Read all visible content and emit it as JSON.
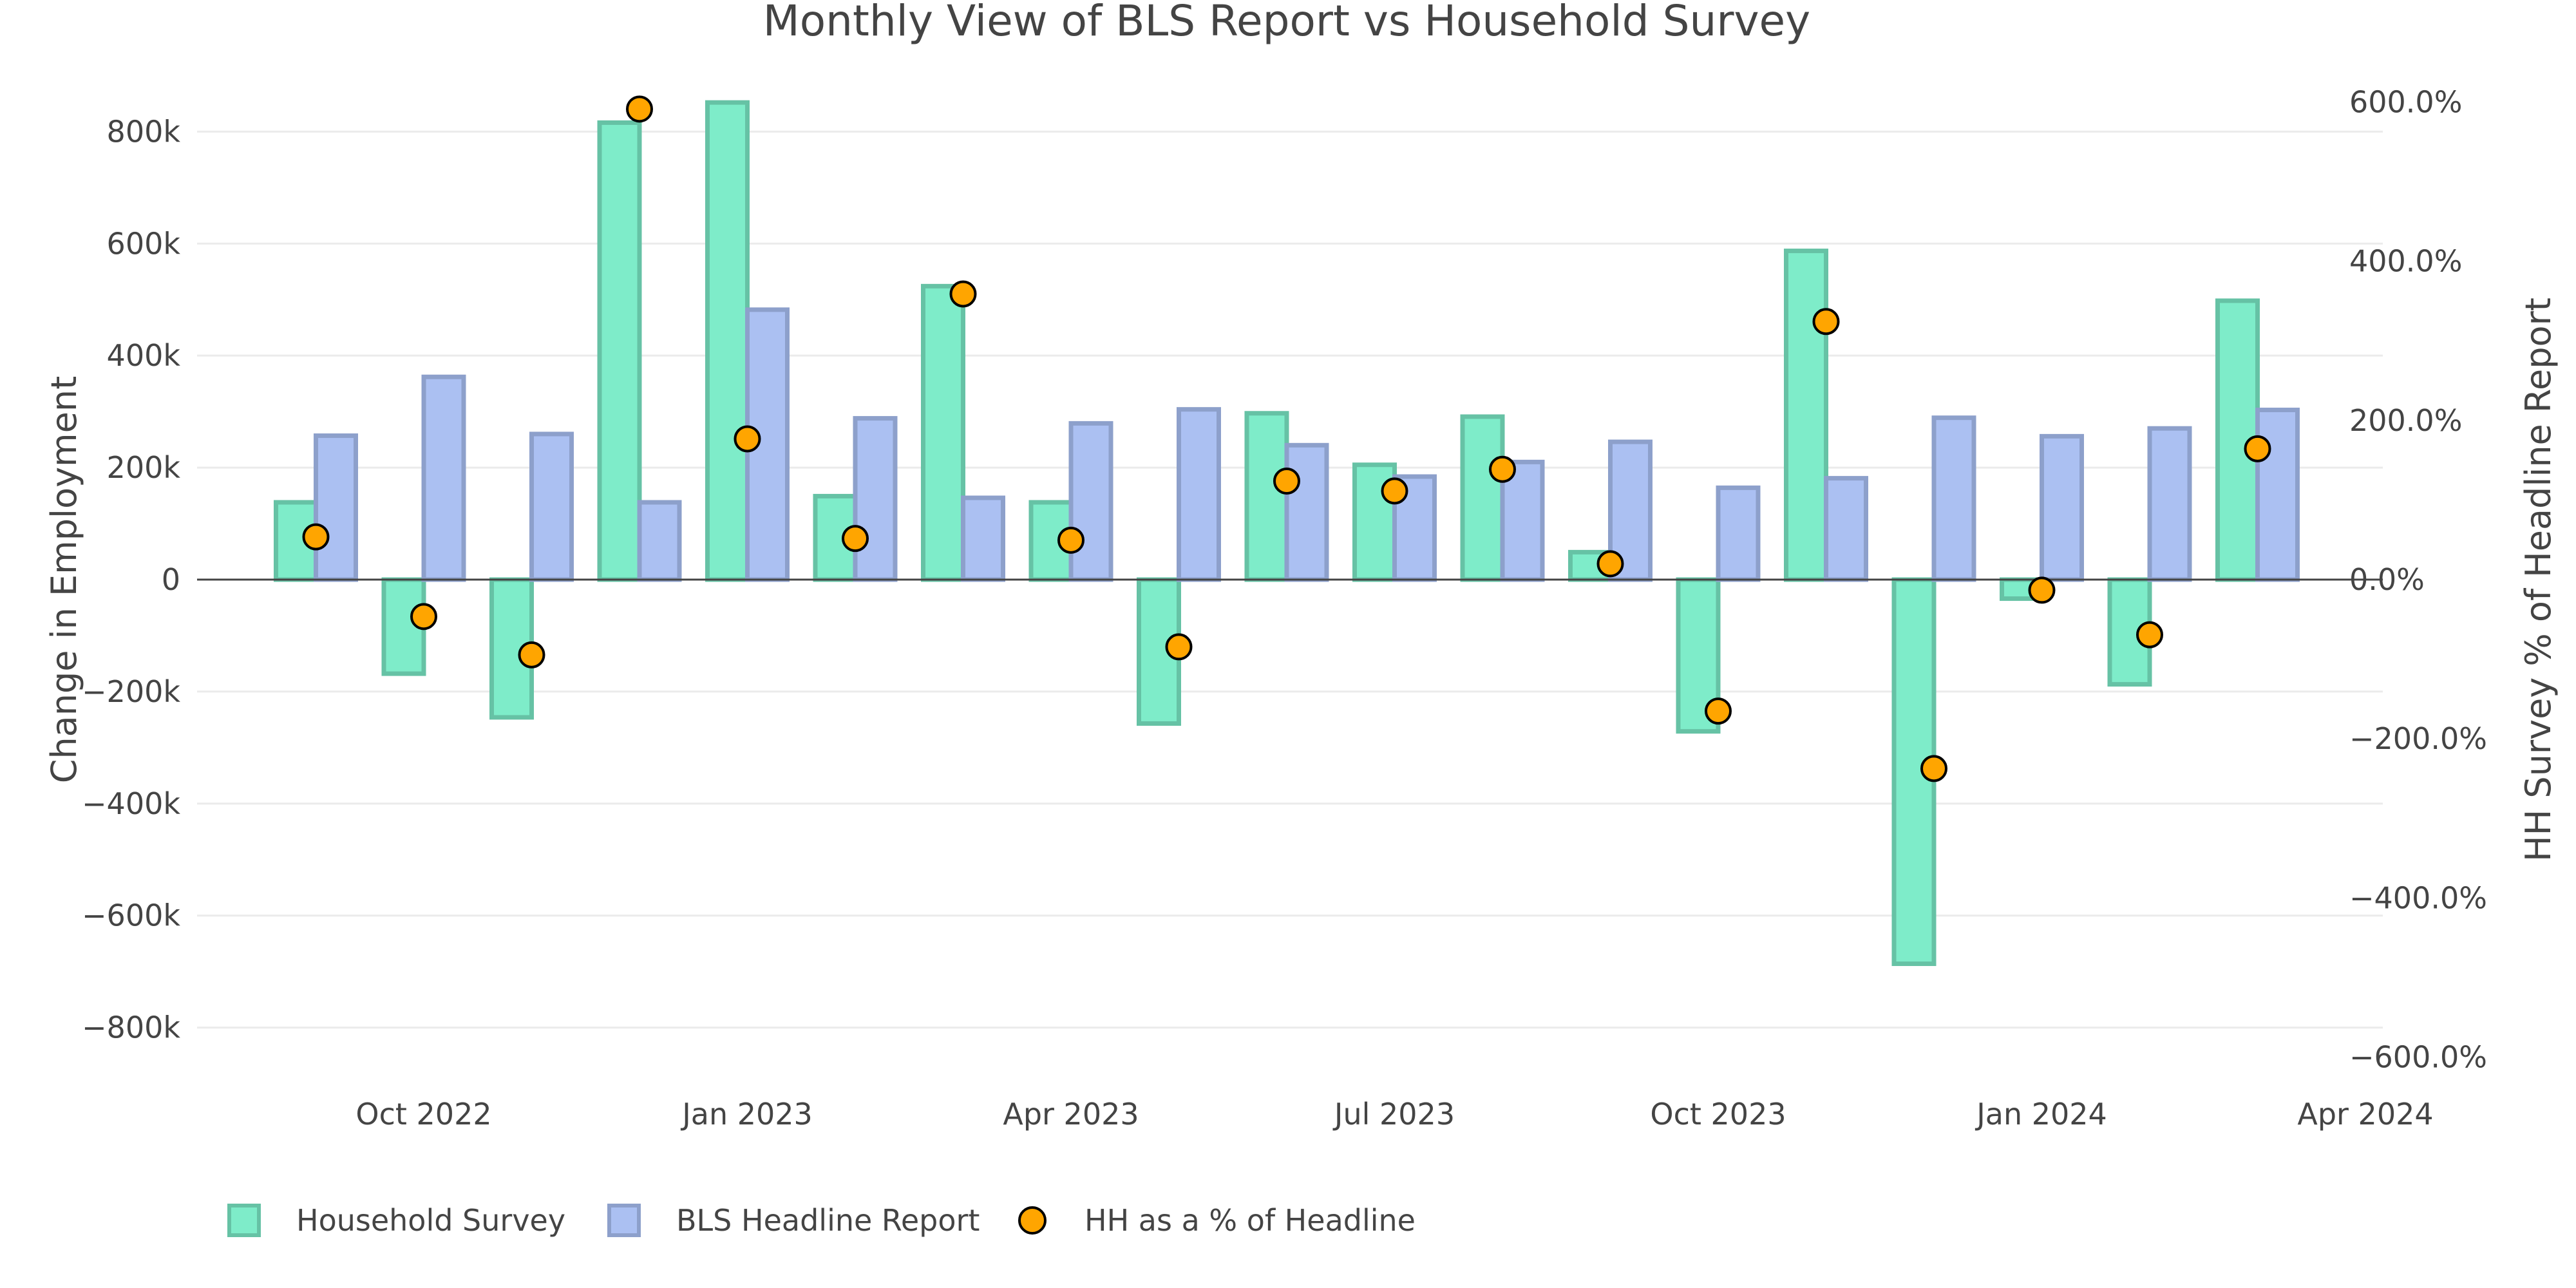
{
  "chart_data": {
    "type": "bar",
    "title": "Monthly View of BLS Report vs Household Survey",
    "xlabel": "",
    "ylabel": "Change in Employment",
    "y2label": "HH Survey % of Headline Report",
    "categories": [
      "Sep 2022",
      "Oct 2022",
      "Nov 2022",
      "Dec 2022",
      "Jan 2023",
      "Feb 2023",
      "Mar 2023",
      "Apr 2023",
      "May 2023",
      "Jun 2023",
      "Jul 2023",
      "Aug 2023",
      "Sep 2023",
      "Oct 2023",
      "Nov 2023",
      "Dec 2023",
      "Jan 2024",
      "Feb 2024",
      "Mar 2024"
    ],
    "x_ticks": [
      "Oct 2022",
      "Jan 2023",
      "Apr 2023",
      "Jul 2023",
      "Oct 2023",
      "Jan 2024",
      "Apr 2024"
    ],
    "x_tick_months_index": [
      1,
      4,
      7,
      10,
      13,
      16,
      19
    ],
    "ylim": [
      -920000,
      920000
    ],
    "y_ticks": [
      800000,
      600000,
      400000,
      200000,
      0,
      -200000,
      -400000,
      -600000,
      -800000
    ],
    "y_tick_labels": [
      "800k",
      "600k",
      "400k",
      "200k",
      "0",
      "−200k",
      "−400k",
      "−600k",
      "−800k"
    ],
    "y2lim": [
      -647.4,
      647.4
    ],
    "y2_ticks": [
      600,
      400,
      200,
      0,
      -200,
      -400,
      -600
    ],
    "y2_tick_labels": [
      "600.0%",
      "400.0%",
      "200.0%",
      "0.0%",
      "−200.0%",
      "−400.0%",
      "−600.0%"
    ],
    "grid": true,
    "legend_position": "bottom-left",
    "series": [
      {
        "name": "Household Survey",
        "type": "bar",
        "axis": "y",
        "fill": "#7eecc9",
        "stroke": "#66c2a5",
        "values": [
          138000,
          -168000,
          -246000,
          816000,
          852000,
          149000,
          524000,
          138000,
          -257000,
          297000,
          205000,
          291000,
          49000,
          -271000,
          587000,
          -686000,
          -34000,
          -187000,
          498000
        ]
      },
      {
        "name": "BLS Headline Report",
        "type": "bar",
        "axis": "y",
        "fill": "#abc0f2",
        "stroke": "#8da0cb",
        "values": [
          257000,
          362000,
          260000,
          138000,
          482000,
          288000,
          146000,
          279000,
          304000,
          240000,
          184000,
          210000,
          246000,
          164000,
          181000,
          289000,
          256000,
          270000,
          303000
        ]
      },
      {
        "name": "HH as a % of Headline",
        "type": "scatter",
        "axis": "y2",
        "fill": "#ffa500",
        "stroke": "#000000",
        "values": [
          53.7,
          -46.4,
          -94.6,
          591.3,
          176.8,
          51.7,
          358.9,
          49.5,
          -84.5,
          123.8,
          111.4,
          138.6,
          19.9,
          -165.2,
          324.3,
          -237.4,
          -13.3,
          -69.3,
          164.4
        ]
      }
    ]
  }
}
